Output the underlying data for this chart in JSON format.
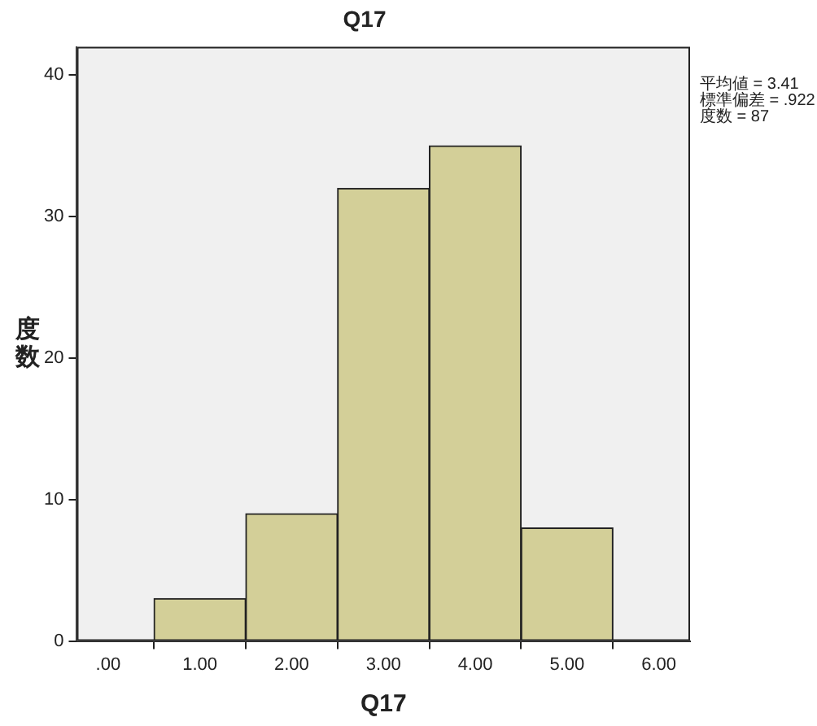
{
  "chart_data": {
    "type": "histogram",
    "title": "Q17",
    "xlabel": "Q17",
    "ylabel": "度数",
    "bins": [
      0.5,
      1.5,
      2.5,
      3.5,
      4.5,
      5.5
    ],
    "values": [
      3,
      9,
      32,
      35,
      8
    ],
    "color": "#d3cf98",
    "xlim": [
      -0.34,
      6.34
    ],
    "xticks": [
      {
        "value": 0,
        "label": ".00"
      },
      {
        "value": 1,
        "label": "1.00"
      },
      {
        "value": 2,
        "label": "2.00"
      },
      {
        "value": 3,
        "label": "3.00"
      },
      {
        "value": 4,
        "label": "4.00"
      },
      {
        "value": 5,
        "label": "5.00"
      },
      {
        "value": 6,
        "label": "6.00"
      }
    ],
    "ylim": [
      0,
      42
    ],
    "yticks": [
      0,
      10,
      20,
      30,
      40
    ],
    "grid": false,
    "legend": false,
    "annotations": [
      "平均値 = 3.41",
      "標準偏差 = .922",
      "度数 = 87"
    ]
  }
}
